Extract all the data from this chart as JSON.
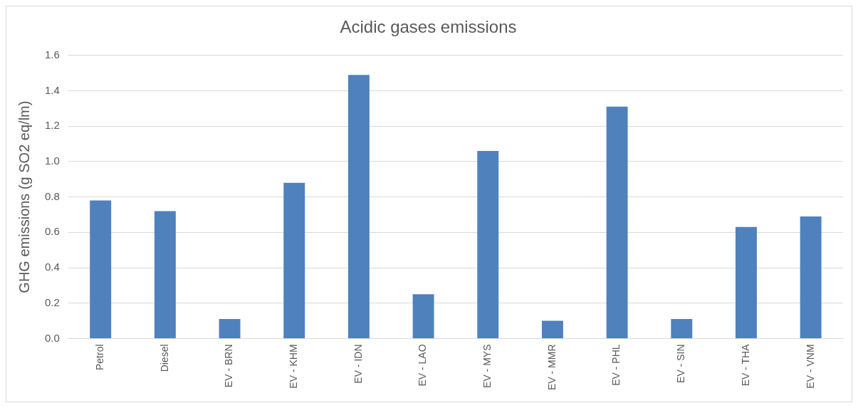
{
  "chart_data": {
    "type": "bar",
    "title": "Acidic gases emissions",
    "ylabel": "GHG emissions (g SO2 eq/lm)",
    "categories": [
      "Petrol",
      "Diesel",
      "EV - BRN",
      "EV - KHM",
      "EV - IDN",
      "EV - LAO",
      "EV - MYS",
      "EV - MMR",
      "EV - PHL",
      "EV - SIN",
      "EV - THA",
      "EV - VNM"
    ],
    "values": [
      0.78,
      0.72,
      0.11,
      0.88,
      1.49,
      0.25,
      1.06,
      0.1,
      1.31,
      0.11,
      0.63,
      0.69
    ],
    "color": "#4f81bd",
    "ylim": [
      0,
      1.6
    ],
    "yticks": [
      {
        "value": 0,
        "label": "0.0"
      },
      {
        "value": 0.2,
        "label": "0.2"
      },
      {
        "value": 0.4,
        "label": "0.4"
      },
      {
        "value": 0.6,
        "label": "0.6"
      },
      {
        "value": 0.8,
        "label": "0.8"
      },
      {
        "value": 1,
        "label": "1.0"
      },
      {
        "value": 1.2,
        "label": "1.2"
      },
      {
        "value": 1.4,
        "label": "1.4"
      },
      {
        "value": 1.6,
        "label": "1.6"
      }
    ],
    "grid": "y",
    "legend": false
  }
}
